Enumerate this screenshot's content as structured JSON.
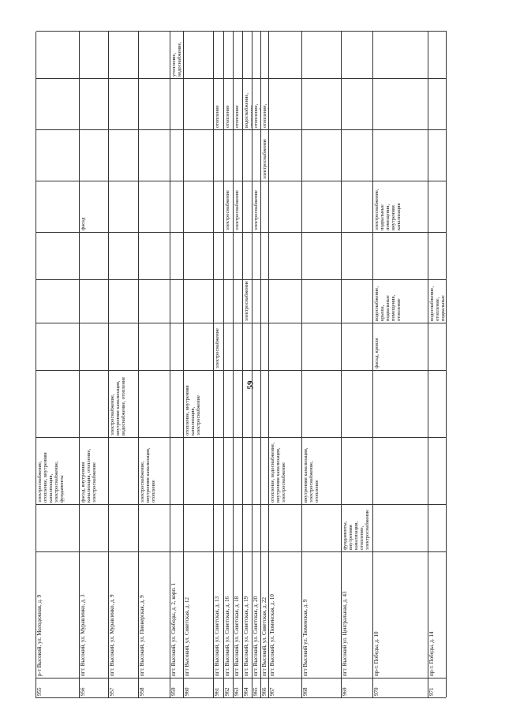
{
  "page_number": "59",
  "table": {
    "rows": [
      [
        "955",
        "р-т Высокий, ул. Молодежная, д. 9",
        null,
        "электроснабжение, отопление, внутренняя канализация, электроснабжение, фундаменты",
        null,
        null,
        null,
        null,
        null,
        null,
        null,
        null
      ],
      [
        "956",
        "пгт. Высокий, ул. Муравленко, д. 3",
        null,
        "фасад, внутренняя канализация, отопление, электроснабжение",
        null,
        null,
        null,
        null,
        "фасад",
        null,
        null,
        null
      ],
      [
        "957",
        "пгт. Высокий, ул. Муравленко, д. 9",
        null,
        null,
        "электроснабжение, внутренняя канализация, водоснабжение, отопление",
        null,
        null,
        null,
        null,
        null,
        null,
        null
      ],
      [
        "958",
        "пгт. Высокий, ул. Пионерская, д. 9",
        null,
        "электроснабжение, внутренняя канализация, отопление",
        null,
        null,
        null,
        null,
        null,
        null,
        null,
        null
      ],
      [
        "959",
        "пгт. Высокий, ул. Свободы, д. 2, корп. 1",
        null,
        null,
        null,
        null,
        null,
        null,
        null,
        null,
        null,
        "утепление, водоснабжение, водоотведение помещения"
      ],
      [
        "960",
        "пгт Высокий, ул. Советская, д. 12",
        null,
        null,
        "отопление, внутренняя канализация, электроснабжение",
        null,
        null,
        null,
        null,
        null,
        null,
        null
      ],
      [
        "961",
        "пгт. Высокий, ул. Советская, д. 13",
        null,
        null,
        null,
        "электроснабжение",
        null,
        null,
        null,
        null,
        "отопление",
        null
      ],
      [
        "962",
        "пгт. Высокий, ул. Советская, д. 16",
        null,
        null,
        null,
        null,
        null,
        null,
        "электроснабжение",
        null,
        "отопление",
        null
      ],
      [
        "963",
        "пгт. Высокий, ул. Советская, д. 18",
        null,
        null,
        null,
        null,
        null,
        null,
        "электроснабжение",
        null,
        "отопление",
        null
      ],
      [
        "964",
        "пгт. Высокий, ул. Советская, д. 19",
        null,
        null,
        null,
        null,
        "электроснабжение",
        null,
        null,
        null,
        "водоснабжение, отопление",
        null
      ],
      [
        "965",
        "пгт. Высокий, ул. Советская, д. 20",
        null,
        null,
        null,
        null,
        null,
        null,
        "электроснабжение",
        null,
        "отопление, водоснабжение",
        null
      ],
      [
        "966",
        "пгт Высокий, ул. Советская, д. 22",
        null,
        null,
        null,
        null,
        null,
        null,
        null,
        "электроснабжение",
        "отопление, водоснабжение",
        null
      ],
      [
        "967",
        "пгт. Высокий, ул. Тюменская, д. 10",
        null,
        "отопление, водоснабжение, внутренняя канализация, электроснабжение",
        null,
        null,
        null,
        null,
        null,
        null,
        null,
        null
      ],
      [
        "968",
        "пгт Высокий ул. Тюменская, д. 9",
        null,
        "внутренняя канализация, электроснабжение, отопление",
        null,
        null,
        null,
        null,
        null,
        null,
        null,
        null
      ],
      [
        "969",
        "пгт. Высокий ул. Центральная, д. 43",
        "фундаменты, внутренняя канализация, отопление, электроснабжение",
        null,
        null,
        null,
        null,
        null,
        null,
        null,
        null,
        null
      ],
      [
        "970",
        "пр-т. Победы, д. 10",
        null,
        null,
        null,
        "фасад, кровля",
        "водоснабжение, крыша, подвальные помещения, отопление",
        null,
        "электроснабжение, подвальные помещения, внутренняя канализация",
        null,
        null,
        null
      ],
      [
        "971",
        "пр-т. Победы, д. 14",
        null,
        null,
        null,
        null,
        "водоснабжение, отопление, подвальные помещения, внутренняя канализация",
        null,
        null,
        null,
        null,
        null
      ]
    ]
  }
}
